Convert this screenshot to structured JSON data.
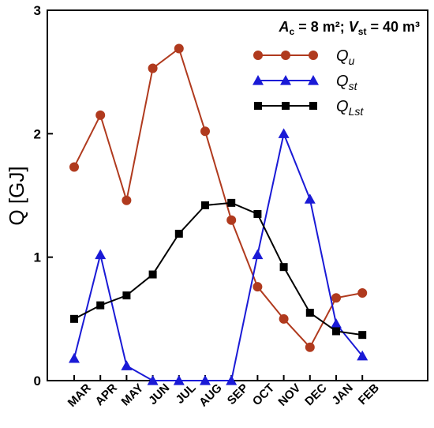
{
  "chart_data": {
    "type": "line",
    "title": "",
    "annotation": {
      "a_symbol": "A",
      "a_sub": "c",
      "a_value": " = 8 m²; ",
      "v_symbol": "V",
      "v_sub": "st",
      "v_value": " = 40 m³"
    },
    "ylabel": "Q [GJ]",
    "xlabel": "",
    "ylim": [
      0,
      3
    ],
    "yticks": [
      "0",
      "1",
      "2",
      "3"
    ],
    "grid": false,
    "legend_position": "top-right",
    "categories": [
      "MAR",
      "APR",
      "MAY",
      "JUN",
      "JUL",
      "AUG",
      "SEP",
      "OCT",
      "NOV",
      "DEC",
      "JAN",
      "FEB"
    ],
    "series": [
      {
        "key": "Qu",
        "name": "Q",
        "name_sub": "u",
        "color": "#b03a1e",
        "marker": "circle",
        "values": [
          1.73,
          2.15,
          1.46,
          2.53,
          2.69,
          2.02,
          1.3,
          0.76,
          0.5,
          0.27,
          0.67,
          0.71
        ]
      },
      {
        "key": "Qst",
        "name": "Q",
        "name_sub": "st",
        "color": "#1a1ad6",
        "marker": "triangle",
        "values": [
          0.18,
          1.02,
          0.12,
          0.0,
          0.0,
          0.0,
          0.0,
          1.02,
          2.0,
          1.47,
          0.46,
          0.2
        ]
      },
      {
        "key": "QLst",
        "name": "Q",
        "name_sub": "Lst",
        "color": "#000000",
        "marker": "square",
        "values": [
          0.5,
          0.61,
          0.69,
          0.86,
          1.19,
          1.42,
          1.44,
          1.35,
          0.92,
          0.55,
          0.4,
          0.37
        ]
      }
    ]
  }
}
